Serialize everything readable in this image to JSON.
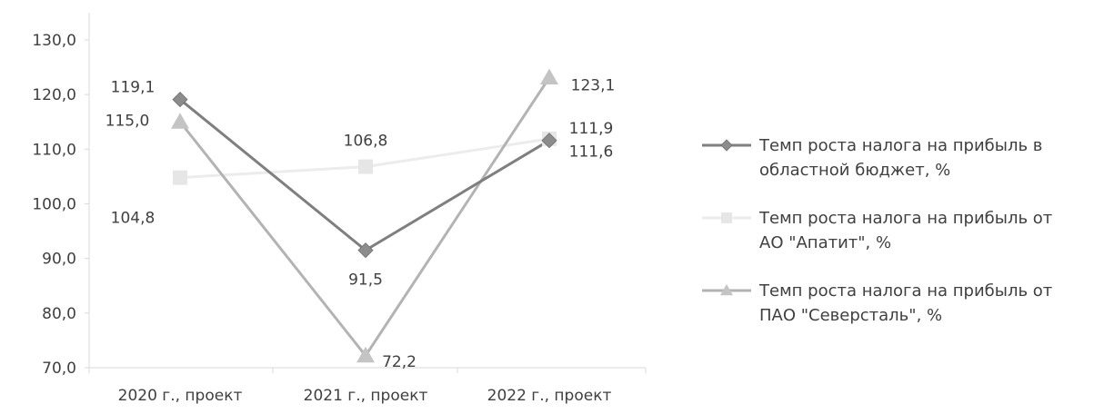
{
  "chart_data": {
    "type": "line",
    "categories": [
      "2020 г., проект",
      "2021 г., проект",
      "2022 г., проект"
    ],
    "ylim": [
      70,
      130
    ],
    "yticks": [
      "130,0",
      "120,0",
      "110,0",
      "100,0",
      "90,0",
      "80,0",
      "70,0"
    ],
    "ytick_values": [
      130,
      120,
      110,
      100,
      90,
      80,
      70
    ],
    "grid": false,
    "legend_position": "right",
    "series": [
      {
        "name": "Темп роста налога на прибыль в областной бюджет, %",
        "legend_lines": [
          "Темп роста налога на прибыль в",
          "областной бюджет, %"
        ],
        "values": [
          119.1,
          91.5,
          111.6
        ],
        "labels": [
          "119,1",
          "91,5",
          "111,6"
        ],
        "marker": "diamond",
        "color": "#7f7f7f",
        "marker_color": "#8c8c8c"
      },
      {
        "name": "Темп роста налога на прибыль от АО \"Апатит\", %",
        "legend_lines": [
          "Темп роста налога на прибыль от",
          "АО \"Апатит\", %"
        ],
        "values": [
          104.8,
          106.8,
          111.9
        ],
        "labels": [
          "104,8",
          "106,8",
          "111,9"
        ],
        "marker": "square",
        "color": "#ececec",
        "marker_color": "#e6e6e6"
      },
      {
        "name": "Темп роста налога на прибыль от ПАО \"Северсталь\", %",
        "legend_lines": [
          "Темп роста налога на прибыль от",
          "ПАО \"Северсталь\", %"
        ],
        "values": [
          115.0,
          72.2,
          123.1
        ],
        "labels": [
          "115,0",
          "72,2",
          "123,1"
        ],
        "marker": "triangle",
        "color": "#b3b3b3",
        "marker_color": "#c4c4c4"
      }
    ]
  }
}
